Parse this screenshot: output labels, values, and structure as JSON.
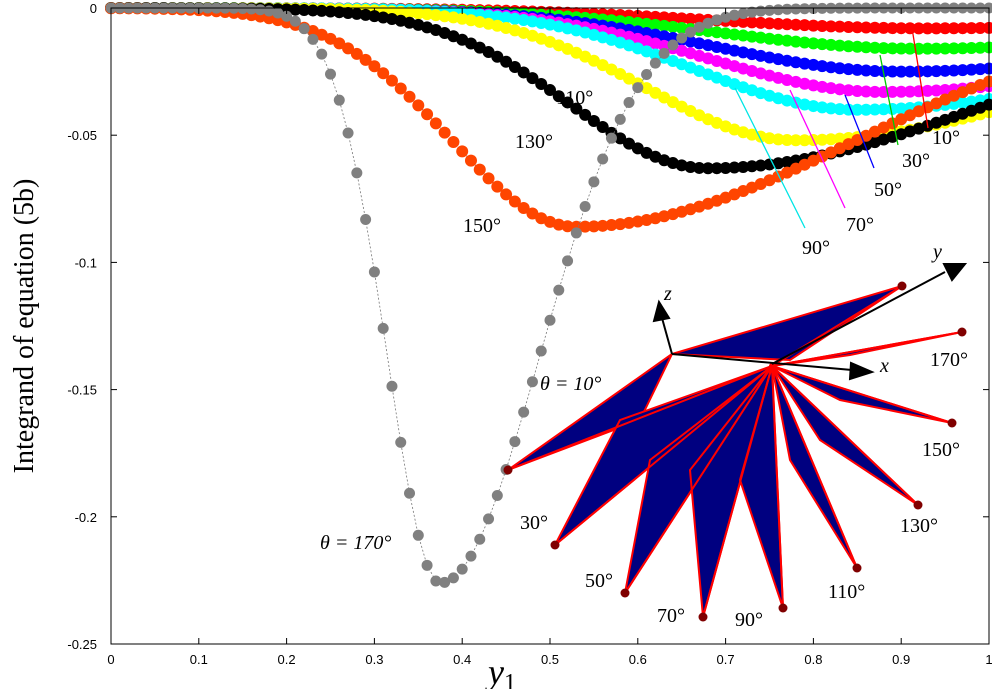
{
  "chart_data": {
    "type": "scatter",
    "title": "",
    "xlabel": "y",
    "xlabel_sub": "1",
    "ylabel": "Integrand of equation (5b)",
    "xlim": [
      0,
      1
    ],
    "ylim": [
      -0.25,
      0
    ],
    "x_ticks": [
      "0",
      "0.1",
      "0.2",
      "0.3",
      "0.4",
      "0.5",
      "0.6",
      "0.7",
      "0.8",
      "0.9",
      "1"
    ],
    "y_ticks": [
      "0",
      "-0.05",
      "-0.1",
      "-0.15",
      "-0.2",
      "-0.25"
    ],
    "grid": false,
    "legend": "none",
    "series": [
      {
        "angle": "10°",
        "color": "#ff0000",
        "min_x": 0.93,
        "min_y": -0.008
      },
      {
        "angle": "30°",
        "color": "#00ff00",
        "min_x": 0.92,
        "min_y": -0.016
      },
      {
        "angle": "50°",
        "color": "#0000ff",
        "min_x": 0.9,
        "min_y": -0.025
      },
      {
        "angle": "70°",
        "color": "#ff00ff",
        "min_x": 0.88,
        "min_y": -0.033
      },
      {
        "angle": "90°",
        "color": "#00ffff",
        "min_x": 0.85,
        "min_y": -0.04
      },
      {
        "angle": "110°",
        "color": "#ffff00",
        "min_x": 0.78,
        "min_y": -0.052
      },
      {
        "angle": "130°",
        "color": "#000000",
        "min_x": 0.68,
        "min_y": -0.063
      },
      {
        "angle": "150°",
        "color": "#ff4500",
        "min_x": 0.53,
        "min_y": -0.086
      },
      {
        "angle": "170°",
        "color": "#808080",
        "min_x": 0.375,
        "min_y": -0.226
      }
    ],
    "curve_labels": [
      "10°",
      "30°",
      "50°",
      "70°",
      "90°",
      "110°",
      "130°",
      "150°"
    ],
    "annotation_theta10": "θ = 10°",
    "annotation_theta170": "θ = 170°"
  },
  "inset": {
    "axis_labels": {
      "x": "x",
      "y": "y",
      "z": "z"
    },
    "fill_color": "#000080",
    "edge_color": "#ff0000",
    "node_color": "#800000",
    "angle_labels": [
      "170°",
      "150°",
      "130°",
      "110°",
      "90°",
      "70°",
      "50°",
      "30°"
    ]
  }
}
